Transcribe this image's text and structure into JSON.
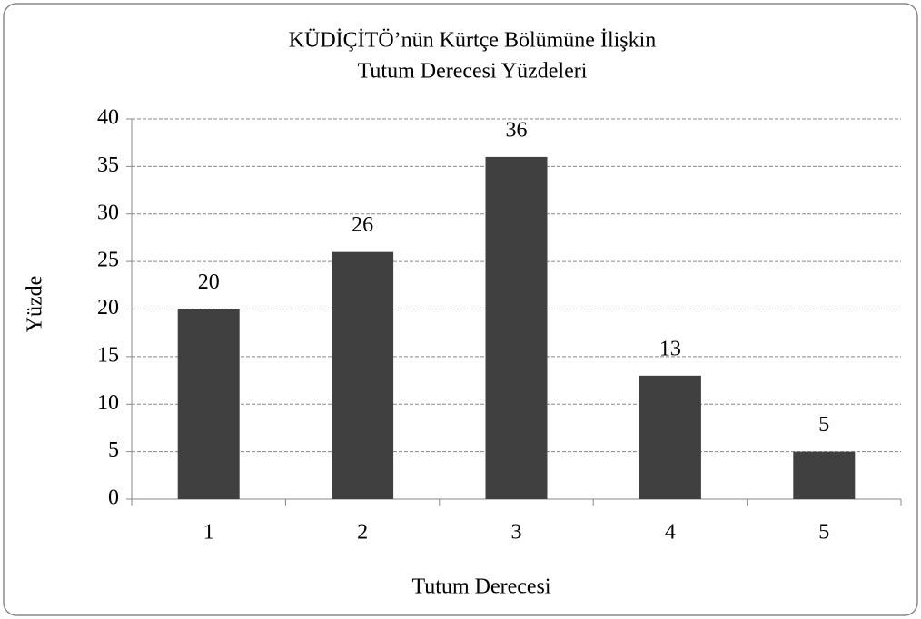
{
  "chart_data": {
    "type": "bar",
    "title": [
      "KÜDİÇİTÖ’nün Kürtçe Bölümüne İlişkin",
      "Tutum Derecesi Yüzdeleri"
    ],
    "x_label": "Tutum Derecesi",
    "y_label": "Yüzde",
    "categories": [
      "1",
      "2",
      "3",
      "4",
      "5"
    ],
    "values": [
      20,
      26,
      36,
      13,
      5
    ],
    "color": "#404040",
    "ylim": [
      0,
      40
    ],
    "yticks": [
      0,
      5,
      10,
      15,
      20,
      25,
      30,
      35,
      40
    ],
    "grid": true
  }
}
